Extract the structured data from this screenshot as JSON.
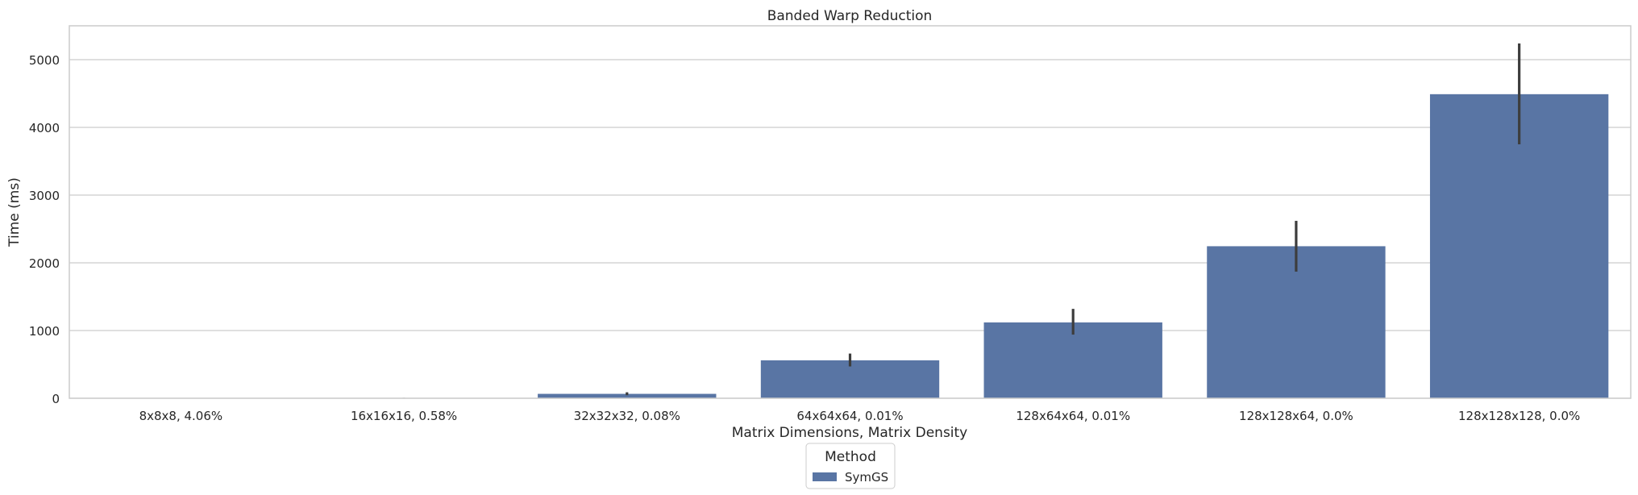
{
  "chart_data": {
    "type": "bar",
    "title": "Banded Warp Reduction",
    "xlabel": "Matrix Dimensions, Matrix Density",
    "ylabel": "Time (ms)",
    "categories": [
      "8x8x8, 4.06%",
      "16x16x16, 0.58%",
      "32x32x32, 0.08%",
      "64x64x64, 0.01%",
      "128x64x64, 0.01%",
      "128x128x64, 0.0%",
      "128x128x128, 0.0%"
    ],
    "series": [
      {
        "name": "SymGS",
        "color": "#5975a4",
        "values": [
          1,
          6,
          65,
          560,
          1120,
          2245,
          4490
        ],
        "error_low": [
          1,
          5,
          45,
          470,
          940,
          1870,
          3750
        ],
        "error_high": [
          1,
          7,
          88,
          660,
          1320,
          2620,
          5240
        ]
      }
    ],
    "ylim": [
      0,
      5500
    ],
    "yticks": [
      0,
      1000,
      2000,
      3000,
      4000,
      5000
    ],
    "grid": "horizontal",
    "legend": {
      "title": "Method",
      "placement": "bottom-center"
    }
  }
}
